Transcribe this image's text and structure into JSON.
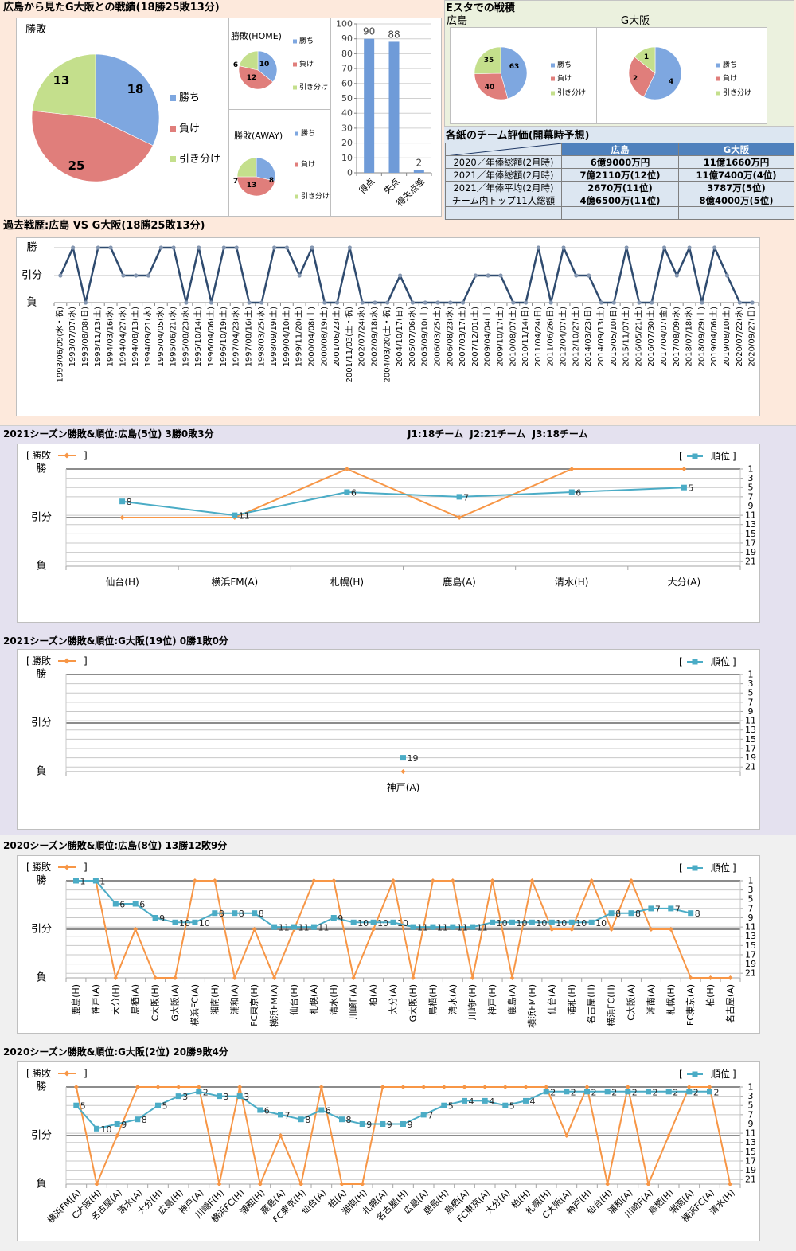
{
  "colors": {
    "win": "#7ea7e0",
    "loss": "#e07e7b",
    "draw": "#c4df8c",
    "bar": "#6f9bd8",
    "result_line": "#f79646",
    "rank_line": "#4bacc6",
    "history_line": "#2f4b6f",
    "history_marker": "#8496b0",
    "section_top_bg": "#fde9dc",
    "section_2021_bg": "#e4e1ef",
    "section_2020_bg": "#f0f0f0",
    "table_header": "#4f81bd",
    "table_row": "#dce6f1",
    "estadium_bg": "#ebf1de"
  },
  "summary": {
    "title": "広島から見たG大阪との戦績(18勝25敗13分)"
  },
  "estadium": {
    "title": "Eスタでの戦積"
  },
  "ratings_table": {
    "title": "各紙のチーム評価(開幕時予想)",
    "columns": [
      "広島",
      "G大阪"
    ],
    "rows": [
      {
        "label": "2020／年俸総額(2月時)",
        "hiroshima": "6億9000万円",
        "gosaka": "11億1660万円"
      },
      {
        "label": "2021／年俸総額(2月時)",
        "hiroshima": "7億2110万(12位)",
        "gosaka": "11億7400万(4位)"
      },
      {
        "label": "2021／年俸平均(2月時)",
        "hiroshima": "2670万(11位)",
        "gosaka": "3787万(5位)"
      },
      {
        "label": "チーム内トップ11人総額",
        "hiroshima": "4億6500万(11位)",
        "gosaka": "8億4000万(5位)"
      },
      {
        "label": "",
        "hiroshima": "",
        "gosaka": ""
      }
    ]
  },
  "season_2021": {
    "league_note": "J1:18チーム  J2:21チーム  J3:18チーム"
  },
  "chart_data": [
    {
      "type": "pie",
      "title": "勝敗",
      "labels": [
        "勝ち",
        "負け",
        "引き分け"
      ],
      "values": [
        18,
        25,
        13
      ]
    },
    {
      "type": "pie",
      "title": "勝敗(HOME)",
      "labels": [
        "勝ち",
        "負け",
        "引き分け"
      ],
      "values": [
        10,
        12,
        6
      ]
    },
    {
      "type": "pie",
      "title": "勝敗(AWAY)",
      "labels": [
        "勝ち",
        "負け",
        "引き分け"
      ],
      "values": [
        8,
        13,
        7
      ]
    },
    {
      "type": "bar",
      "title": "",
      "categories": [
        "得点",
        "失点",
        "得失点差"
      ],
      "values": [
        90,
        88,
        2
      ],
      "ylim": [
        0,
        100
      ],
      "yticks": [
        0,
        10,
        20,
        30,
        40,
        50,
        60,
        70,
        80,
        90,
        100
      ],
      "xlabel": "",
      "ylabel": ""
    },
    {
      "type": "pie",
      "title": "広島",
      "labels": [
        "勝ち",
        "負け",
        "引き分け"
      ],
      "values": [
        63,
        40,
        35
      ]
    },
    {
      "type": "pie",
      "title": "G大阪",
      "labels": [
        "勝ち",
        "負け",
        "引き分け"
      ],
      "values": [
        4,
        2,
        1
      ]
    },
    {
      "type": "line",
      "title": "過去戦歴:広島 VS G大阪(18勝25敗13分)",
      "yticks": [
        "勝",
        "引分",
        "負"
      ],
      "categories": [
        "1993/06/09(水・祝)",
        "1993/07/07(水)",
        "1993/08/08(日)",
        "1993/11/13(土)",
        "1994/03/16(水)",
        "1994/04/27(水)",
        "1994/08/13(土)",
        "1994/09/21(水)",
        "1995/04/05(水)",
        "1995/06/21(水)",
        "1995/08/23(水)",
        "1995/10/14(土)",
        "1996/04/06(土)",
        "1996/10/19(土)",
        "1997/04/23(水)",
        "1997/08/16(土)",
        "1998/03/25(水)",
        "1998/09/19(土)",
        "1999/04/10(土)",
        "1999/11/20(土)",
        "2000/04/08(土)",
        "2000/08/19(土)",
        "2001/06/23(土)",
        "2001/11/03(土・祝)",
        "2002/07/24(水)",
        "2002/09/18(水)",
        "2004/03/20(土・祝)",
        "2004/10/17(日)",
        "2005/07/06(水)",
        "2005/09/10(土)",
        "2006/03/25(土)",
        "2006/08/23(水)",
        "2007/03/17(土)",
        "2007/12/01(土)",
        "2009/04/04(土)",
        "2009/10/17(土)",
        "2010/08/07(土)",
        "2010/11/14(日)",
        "2011/04/24(日)",
        "2011/06/26(日)",
        "2012/04/07(土)",
        "2012/10/27(土)",
        "2014/03/23(日)",
        "2014/09/13(土)",
        "2015/05/10(日)",
        "2015/11/07(土)",
        "2016/05/21(土)",
        "2016/07/30(土)",
        "2017/04/07(金)",
        "2017/08/09(水)",
        "2018/07/18(水)",
        "2018/09/29(土)",
        "2019/04/06(土)",
        "2019/08/10(土)",
        "2020/07/22(水)",
        "2020/09/27(日)"
      ],
      "values": [
        "引分",
        "勝",
        "負",
        "勝",
        "勝",
        "引分",
        "引分",
        "引分",
        "勝",
        "勝",
        "負",
        "勝",
        "負",
        "勝",
        "勝",
        "負",
        "負",
        "勝",
        "勝",
        "引分",
        "勝",
        "負",
        "負",
        "勝",
        "負",
        "負",
        "負",
        "引分",
        "負",
        "負",
        "負",
        "負",
        "負",
        "引分",
        "引分",
        "引分",
        "負",
        "負",
        "勝",
        "負",
        "勝",
        "引分",
        "引分",
        "負",
        "負",
        "勝",
        "負",
        "負",
        "勝",
        "引分",
        "勝",
        "負",
        "勝",
        "引分",
        "負",
        "負"
      ]
    },
    {
      "type": "line",
      "title": "2021シーズン勝敗&順位:広島(5位) 3勝0敗3分",
      "legend_brackets": [
        "[",
        "]"
      ],
      "left_ticks": [
        "勝",
        "引分",
        "負"
      ],
      "right_ticks": [
        1,
        3,
        5,
        7,
        9,
        11,
        13,
        15,
        17,
        19,
        21
      ],
      "categories": [
        "仙台(H)",
        "横浜FM(A)",
        "札幌(H)",
        "鹿島(A)",
        "清水(H)",
        "大分(A)"
      ],
      "series": [
        {
          "name": "勝敗",
          "values": [
            "引分",
            "引分",
            "勝",
            "引分",
            "勝",
            "勝"
          ]
        },
        {
          "name": "順位",
          "values": [
            8,
            11,
            6,
            7,
            6,
            5
          ]
        }
      ]
    },
    {
      "type": "line",
      "title": "2021シーズン勝敗&順位:G大阪(19位) 0勝1敗0分",
      "legend_brackets": [
        "[",
        "]"
      ],
      "left_ticks": [
        "勝",
        "引分",
        "負"
      ],
      "right_ticks": [
        1,
        3,
        5,
        7,
        9,
        11,
        13,
        15,
        17,
        19,
        21
      ],
      "categories": [
        "神戸(A)"
      ],
      "series": [
        {
          "name": "勝敗",
          "values": [
            "負"
          ]
        },
        {
          "name": "順位",
          "values": [
            19
          ]
        }
      ]
    },
    {
      "type": "line",
      "title": "2020シーズン勝敗&順位:広島(8位) 13勝12敗9分",
      "legend_brackets": [
        "[",
        "]"
      ],
      "left_ticks": [
        "勝",
        "引分",
        "負"
      ],
      "right_ticks": [
        1,
        3,
        5,
        7,
        9,
        11,
        13,
        15,
        17,
        19,
        21
      ],
      "categories": [
        "鹿島(H)",
        "神戸(A)",
        "大分(H)",
        "鳥栖(A)",
        "C大阪(H)",
        "G大阪(A)",
        "横浜FC(A)",
        "湘南(H)",
        "浦和(A)",
        "FC東京(H)",
        "横浜FM(A)",
        "仙台(H)",
        "札幌(A)",
        "清水(H)",
        "川崎F(A)",
        "柏(A)",
        "大分(A)",
        "G大阪(H)",
        "鳥栖(H)",
        "清水(A)",
        "川崎F(H)",
        "神戸(H)",
        "鹿島(A)",
        "横浜FM(H)",
        "仙台(A)",
        "浦和(H)",
        "名古屋(H)",
        "横浜FC(H)",
        "C大阪(A)",
        "湘南(A)",
        "札幌(H)",
        "FC東京(A)",
        "柏(H)",
        "名古屋(A)"
      ],
      "series": [
        {
          "name": "勝敗",
          "values": [
            "勝",
            "勝",
            "負",
            "引分",
            "負",
            "負",
            "勝",
            "勝",
            "負",
            "引分",
            "負",
            "引分",
            "勝",
            "勝",
            "負",
            "引分",
            "勝",
            "負",
            "勝",
            "勝",
            "負",
            "勝",
            "負",
            "勝",
            "引分",
            "引分",
            "勝",
            "引分",
            "勝",
            "引分",
            "引分",
            "負",
            "負",
            "負"
          ]
        },
        {
          "name": "順位",
          "values": [
            1,
            1,
            6,
            6,
            9,
            10,
            10,
            8,
            8,
            8,
            11,
            11,
            11,
            9,
            10,
            10,
            10,
            11,
            11,
            11,
            11,
            10,
            10,
            10,
            10,
            10,
            10,
            8,
            8,
            7,
            7,
            8,
            null,
            null
          ]
        }
      ]
    },
    {
      "type": "line",
      "title": "2020シーズン勝敗&順位:G大阪(2位) 20勝9敗4分",
      "legend_brackets": [
        "[",
        "]"
      ],
      "left_ticks": [
        "勝",
        "引分",
        "負"
      ],
      "right_ticks": [
        1,
        3,
        5,
        7,
        9,
        11,
        13,
        15,
        17,
        19,
        21
      ],
      "categories": [
        "横浜FM(A)",
        "C大阪(H)",
        "名古屋(A)",
        "清水(A)",
        "大分(H)",
        "広島(H)",
        "神戸(A)",
        "川崎F(H)",
        "横浜FC(H)",
        "浦和(H)",
        "鹿島(A)",
        "FC東京(H)",
        "仙台(A)",
        "柏(A)",
        "湘南(H)",
        "札幌(A)",
        "名古屋(H)",
        "広島(A)",
        "鹿島(H)",
        "鳥栖(A)",
        "FC東京(A)",
        "大分(A)",
        "柏(H)",
        "札幌(H)",
        "C大阪(A)",
        "神戸(H)",
        "仙台(H)",
        "浦和(A)",
        "川崎F(A)",
        "鳥栖(H)",
        "湘南(A)",
        "横浜FC(A)",
        "清水(H)"
      ],
      "series": [
        {
          "name": "勝敗",
          "values": [
            "勝",
            "負",
            "引分",
            "勝",
            "勝",
            "勝",
            "勝",
            "負",
            "勝",
            "負",
            "引分",
            "負",
            "勝",
            "負",
            "負",
            "勝",
            "勝",
            "勝",
            "勝",
            "勝",
            "勝",
            "勝",
            "勝",
            "勝",
            "引分",
            "勝",
            "負",
            "勝",
            "負",
            "引分",
            "勝",
            "勝",
            "負"
          ]
        },
        {
          "name": "順位",
          "values": [
            5,
            10,
            9,
            8,
            5,
            3,
            2,
            3,
            3,
            6,
            7,
            8,
            6,
            8,
            9,
            9,
            9,
            7,
            5,
            4,
            4,
            5,
            4,
            2,
            2,
            2,
            2,
            2,
            2,
            2,
            2,
            2,
            null
          ]
        }
      ]
    }
  ]
}
